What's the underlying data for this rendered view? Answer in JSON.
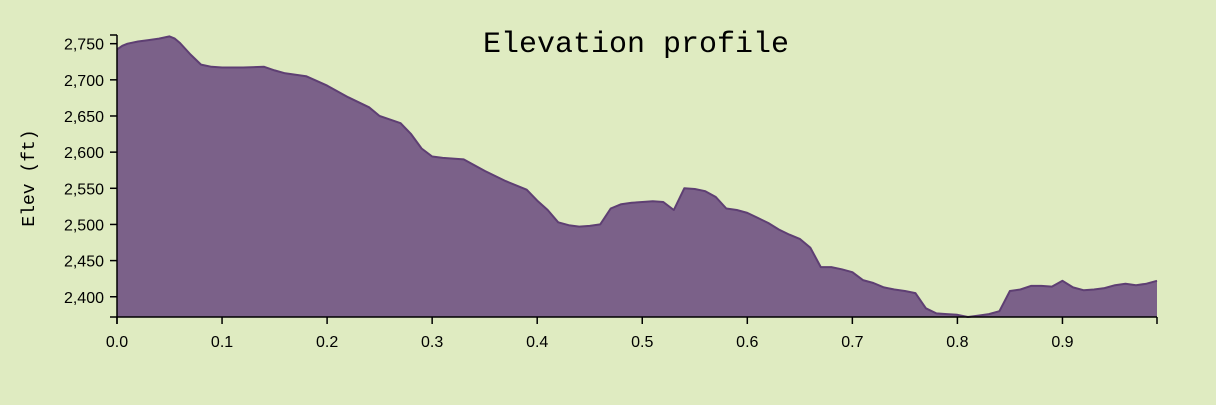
{
  "colors": {
    "background": "#dfebc1",
    "area_fill": "#7b6189",
    "area_stroke": "#5e3f73",
    "axis": "#000000"
  },
  "chart_data": {
    "type": "area",
    "title": "Elevation profile",
    "xlabel": "",
    "ylabel": "Elev (ft)",
    "xlim": [
      0,
      0.99
    ],
    "ylim": [
      2372,
      2762
    ],
    "grid": false,
    "x_ticks": [
      0.0,
      0.1,
      0.2,
      0.3,
      0.4,
      0.5,
      0.6,
      0.7,
      0.8,
      0.9
    ],
    "x_tick_labels": [
      "0.0",
      "0.1",
      "0.2",
      "0.3",
      "0.4",
      "0.5",
      "0.6",
      "0.7",
      "0.8",
      "0.9"
    ],
    "y_ticks": [
      2400,
      2450,
      2500,
      2550,
      2600,
      2650,
      2700,
      2750
    ],
    "y_tick_labels": [
      "2,400",
      "2,450",
      "2,500",
      "2,550",
      "2,600",
      "2,650",
      "2,700",
      "2,750"
    ],
    "series": [
      {
        "x": [
          0.0,
          0.005,
          0.01,
          0.02,
          0.03,
          0.04,
          0.05,
          0.055,
          0.06,
          0.07,
          0.08,
          0.09,
          0.1,
          0.12,
          0.14,
          0.15,
          0.16,
          0.18,
          0.2,
          0.22,
          0.24,
          0.25,
          0.26,
          0.27,
          0.28,
          0.29,
          0.3,
          0.31,
          0.33,
          0.35,
          0.37,
          0.39,
          0.4,
          0.41,
          0.42,
          0.43,
          0.44,
          0.45,
          0.46,
          0.47,
          0.48,
          0.49,
          0.5,
          0.51,
          0.52,
          0.53,
          0.54,
          0.55,
          0.56,
          0.57,
          0.58,
          0.59,
          0.6,
          0.61,
          0.62,
          0.63,
          0.64,
          0.65,
          0.66,
          0.67,
          0.68,
          0.69,
          0.7,
          0.71,
          0.72,
          0.73,
          0.74,
          0.75,
          0.76,
          0.77,
          0.78,
          0.79,
          0.8,
          0.81,
          0.82,
          0.83,
          0.84,
          0.85,
          0.86,
          0.87,
          0.88,
          0.89,
          0.9,
          0.91,
          0.92,
          0.93,
          0.94,
          0.95,
          0.96,
          0.97,
          0.98,
          0.99
        ],
        "values": [
          2742,
          2747,
          2750,
          2753,
          2755,
          2757,
          2760,
          2757,
          2751,
          2735,
          2721,
          2718,
          2717,
          2717,
          2718,
          2713,
          2709,
          2705,
          2692,
          2676,
          2662,
          2650,
          2645,
          2640,
          2625,
          2605,
          2594,
          2592,
          2590,
          2574,
          2560,
          2548,
          2533,
          2520,
          2503,
          2499,
          2497,
          2498,
          2500,
          2522,
          2528,
          2530,
          2531,
          2532,
          2531,
          2520,
          2550,
          2549,
          2546,
          2538,
          2522,
          2520,
          2516,
          2509,
          2502,
          2493,
          2486,
          2480,
          2468,
          2441,
          2441,
          2438,
          2434,
          2423,
          2419,
          2413,
          2410,
          2408,
          2405,
          2384,
          2377,
          2376,
          2375,
          2372,
          2374,
          2376,
          2380,
          2408,
          2410,
          2415,
          2415,
          2414,
          2422,
          2413,
          2409,
          2410,
          2412,
          2416,
          2418,
          2416,
          2418,
          2422
        ]
      }
    ]
  }
}
